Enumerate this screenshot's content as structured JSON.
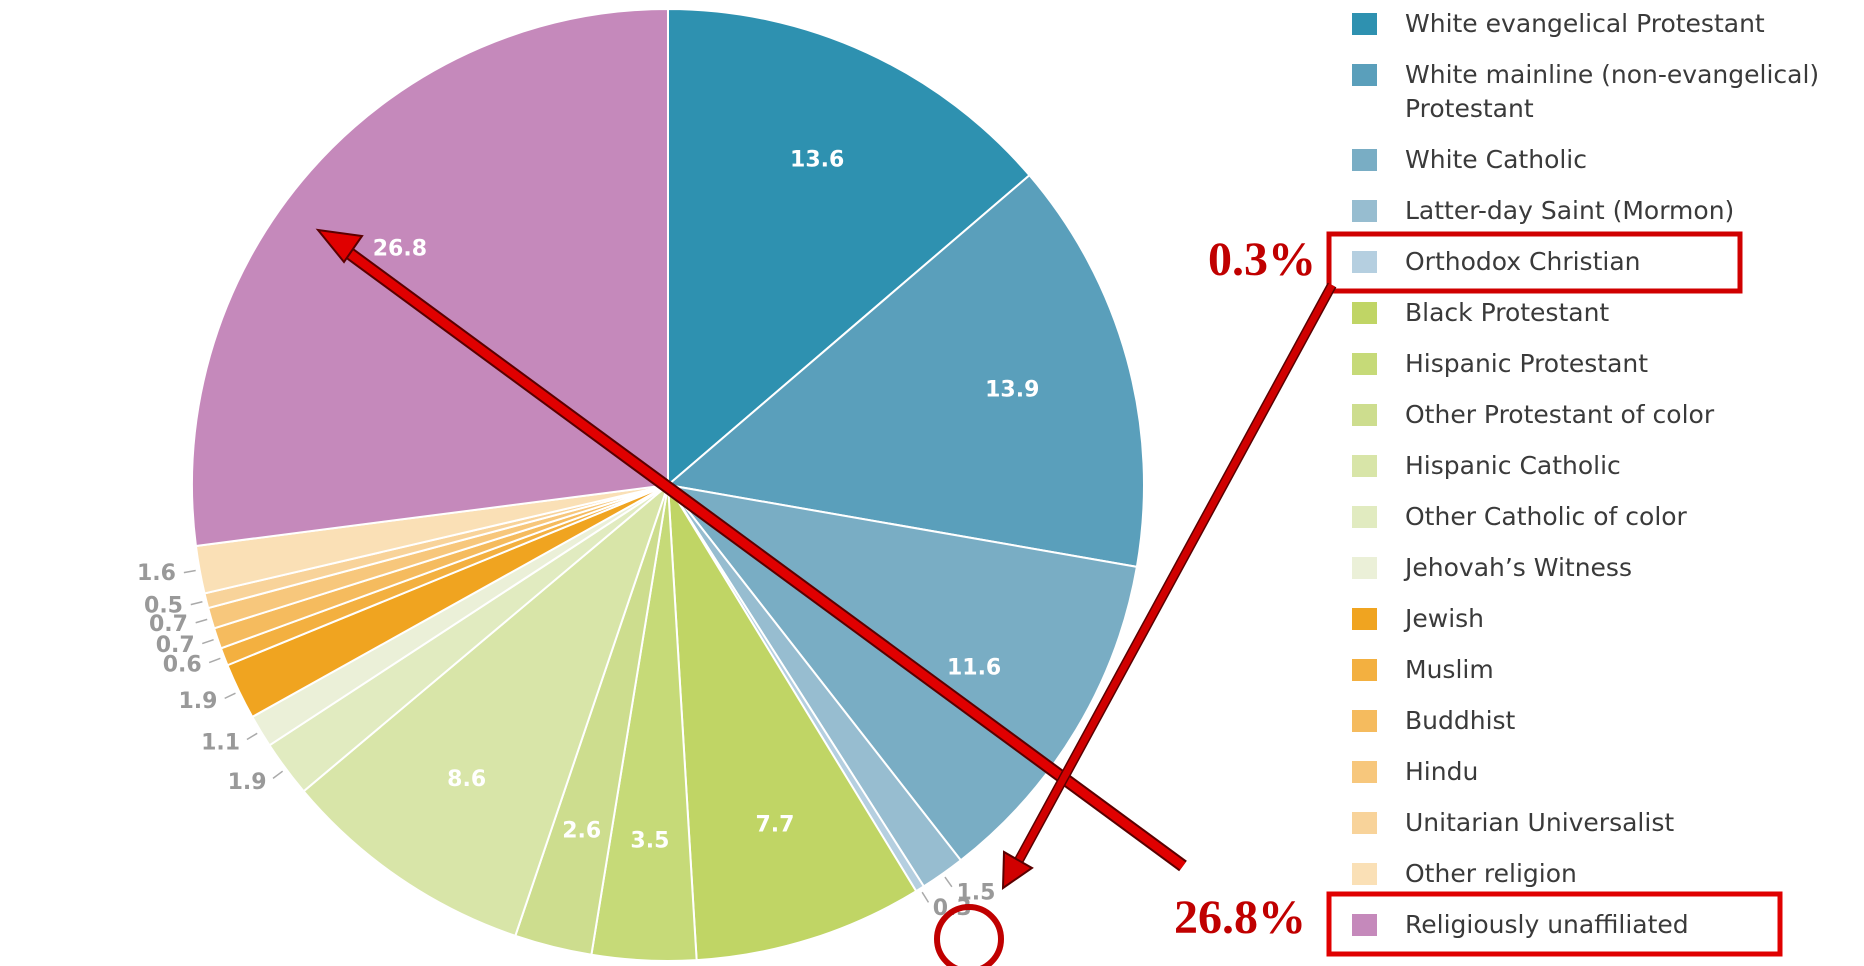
{
  "chart_data": {
    "type": "pie",
    "categories": [
      "White evangelical Protestant",
      "White mainline (non-evangelical) Protestant",
      "White Catholic",
      "Latter-day Saint (Mormon)",
      "Orthodox Christian",
      "Black Protestant",
      "Hispanic Protestant",
      "Other Protestant of color",
      "Hispanic Catholic",
      "Other Catholic of color",
      "Jehovah’s Witness",
      "Jewish",
      "Muslim",
      "Buddhist",
      "Hindu",
      "Unitarian Universalist",
      "Other religion",
      "Religiously unaffiliated"
    ],
    "values": [
      13.6,
      13.9,
      11.6,
      1.5,
      0.3,
      7.7,
      3.5,
      2.6,
      8.6,
      1.9,
      1.1,
      1.9,
      0.6,
      0.7,
      0.7,
      0.5,
      1.6,
      26.8
    ],
    "colors": [
      "#2e91b0",
      "#5a9fbb",
      "#79adc4",
      "#97bdd0",
      "#b5cfe0",
      "#c0d565",
      "#c6da78",
      "#cddd8e",
      "#d8e5a8",
      "#e1ebc0",
      "#ebf0d8",
      "#f0a420",
      "#f3b040",
      "#f5bb5e",
      "#f7c77c",
      "#f8d39a",
      "#fae0b6",
      "#c589bb"
    ],
    "annotations": [
      "0.3%",
      "26.8%"
    ]
  }
}
